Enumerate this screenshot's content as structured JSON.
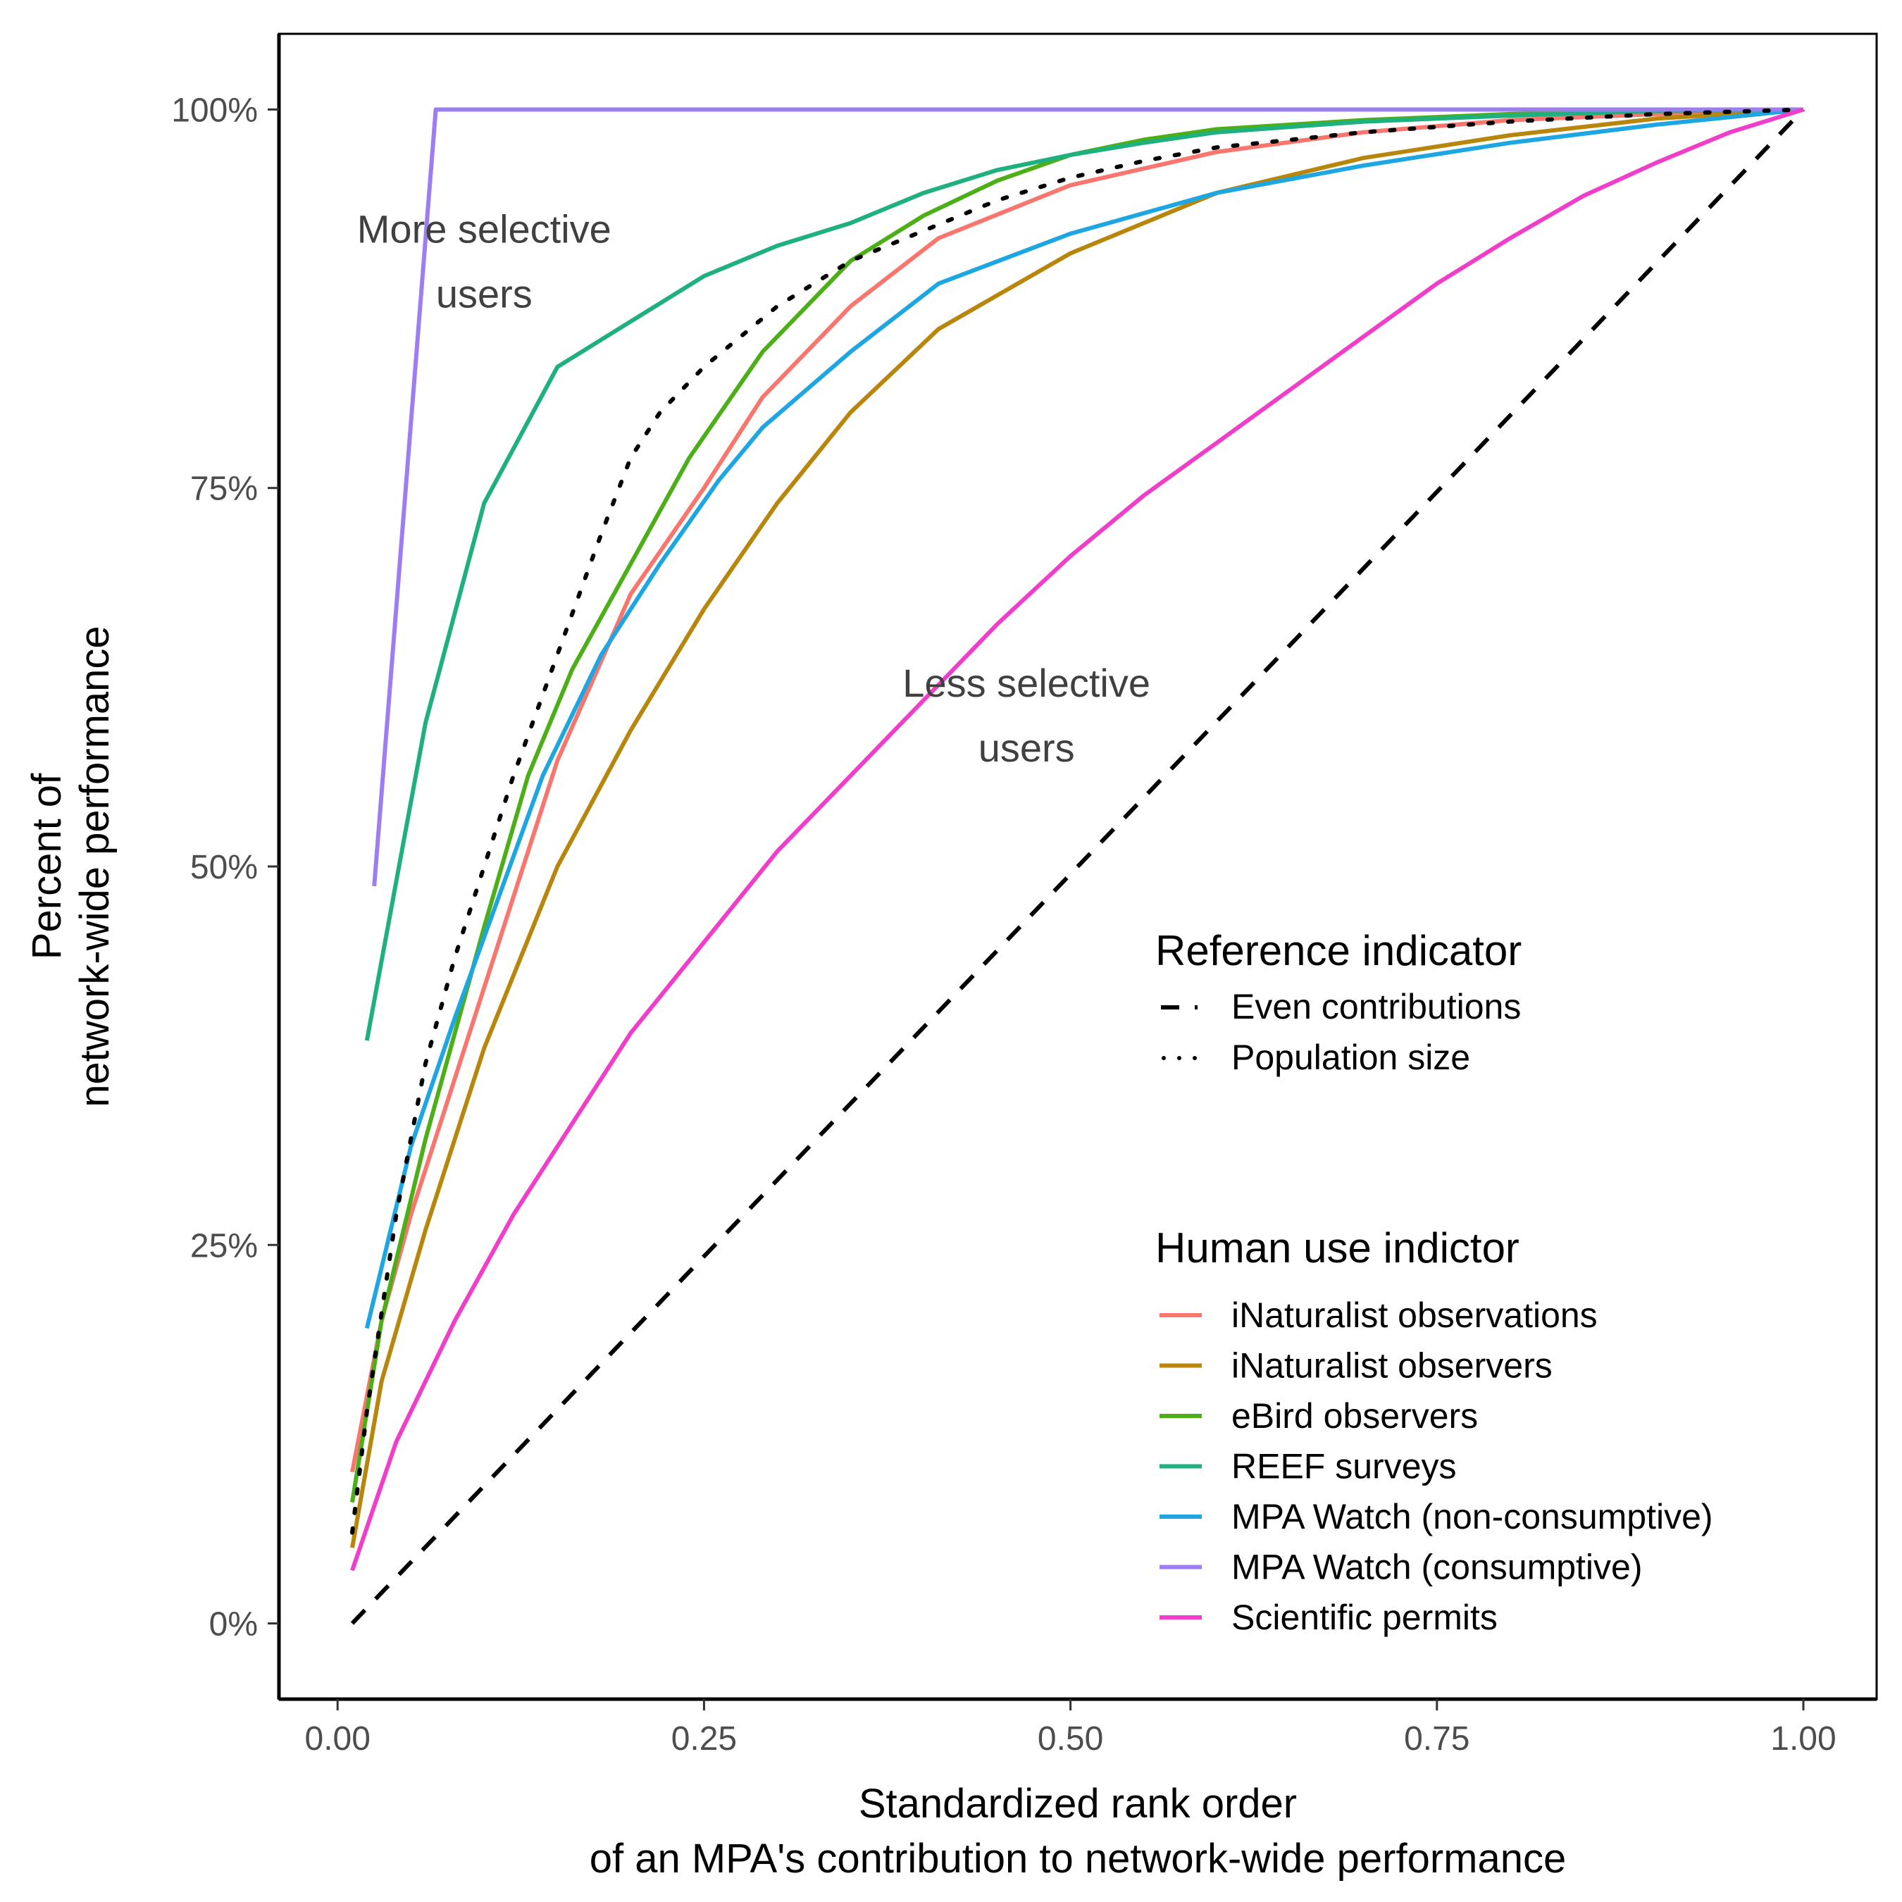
{
  "chart_data": {
    "type": "line",
    "xlabel_lines": [
      "Standardized rank order",
      "of an MPA's contribution to network-wide performance"
    ],
    "ylabel_lines": [
      "Percent of",
      "network-wide performance"
    ],
    "xlim": [
      -0.04,
      1.05
    ],
    "ylim": [
      -0.05,
      1.05
    ],
    "x_ticks": [
      0,
      0.25,
      0.5,
      0.75,
      1.0
    ],
    "x_tick_labels": [
      "0.00",
      "0.25",
      "0.50",
      "0.75",
      "1.00"
    ],
    "y_ticks": [
      0,
      0.25,
      0.5,
      0.75,
      1.0
    ],
    "y_tick_labels": [
      "0%",
      "25%",
      "50%",
      "75%",
      "100%"
    ],
    "grid": false,
    "annotations": [
      {
        "lines": [
          "More selective",
          "users"
        ],
        "x": 0.1,
        "y": 0.9
      },
      {
        "lines": [
          "Less selective",
          "users"
        ],
        "x": 0.47,
        "y": 0.6
      }
    ],
    "legend_position": "bottom-right",
    "reference_legend": {
      "title": "Reference indicator",
      "entries": [
        {
          "name": "Even contributions",
          "dash": "dashed"
        },
        {
          "name": "Population size",
          "dash": "dotted"
        }
      ]
    },
    "series_legend_title": "Human use indictor",
    "reference_series": [
      {
        "name": "Even contributions",
        "color": "#000000",
        "dash": "dashed",
        "x": [
          0.01,
          1.0
        ],
        "y": [
          0.0,
          1.0
        ]
      },
      {
        "name": "Population size",
        "color": "#000000",
        "dash": "dotted",
        "x": [
          0.01,
          0.02,
          0.04,
          0.06,
          0.08,
          0.1,
          0.12,
          0.15,
          0.18,
          0.2,
          0.22,
          0.25,
          0.3,
          0.35,
          0.4,
          0.45,
          0.5,
          0.55,
          0.6,
          0.7,
          0.8,
          0.9,
          1.0
        ],
        "y": [
          0.06,
          0.14,
          0.27,
          0.37,
          0.44,
          0.5,
          0.56,
          0.64,
          0.72,
          0.77,
          0.8,
          0.83,
          0.87,
          0.9,
          0.92,
          0.94,
          0.955,
          0.966,
          0.975,
          0.985,
          0.992,
          0.997,
          1.0
        ]
      }
    ],
    "series": [
      {
        "name": "iNaturalist observations",
        "color": "#F8766D",
        "x": [
          0.01,
          0.03,
          0.05,
          0.08,
          0.11,
          0.15,
          0.2,
          0.25,
          0.29,
          0.35,
          0.41,
          0.5,
          0.6,
          0.7,
          0.8,
          0.9,
          1.0
        ],
        "y": [
          0.1,
          0.2,
          0.27,
          0.36,
          0.45,
          0.57,
          0.68,
          0.75,
          0.81,
          0.87,
          0.915,
          0.95,
          0.972,
          0.985,
          0.993,
          0.997,
          1.0
        ]
      },
      {
        "name": "iNaturalist observers",
        "color": "#B8860B",
        "x": [
          0.01,
          0.03,
          0.06,
          0.1,
          0.15,
          0.2,
          0.25,
          0.3,
          0.35,
          0.41,
          0.5,
          0.6,
          0.7,
          0.8,
          0.9,
          1.0
        ],
        "y": [
          0.05,
          0.16,
          0.26,
          0.38,
          0.5,
          0.59,
          0.67,
          0.74,
          0.8,
          0.855,
          0.905,
          0.945,
          0.968,
          0.983,
          0.994,
          1.0
        ]
      },
      {
        "name": "eBird observers",
        "color": "#4DAF18",
        "x": [
          0.01,
          0.03,
          0.06,
          0.1,
          0.13,
          0.16,
          0.2,
          0.24,
          0.29,
          0.35,
          0.4,
          0.45,
          0.5,
          0.55,
          0.6,
          0.7,
          0.8,
          0.9,
          1.0
        ],
        "y": [
          0.08,
          0.2,
          0.32,
          0.46,
          0.56,
          0.63,
          0.7,
          0.77,
          0.84,
          0.9,
          0.93,
          0.953,
          0.97,
          0.98,
          0.987,
          0.993,
          0.997,
          0.999,
          1.0
        ]
      },
      {
        "name": "REEF surveys",
        "color": "#1FB07F",
        "x": [
          0.02,
          0.06,
          0.1,
          0.15,
          0.2,
          0.25,
          0.3,
          0.35,
          0.4,
          0.45,
          0.5,
          0.55,
          0.6,
          0.7,
          0.8,
          0.9,
          1.0
        ],
        "y": [
          0.385,
          0.595,
          0.74,
          0.83,
          0.86,
          0.89,
          0.91,
          0.925,
          0.945,
          0.96,
          0.97,
          0.978,
          0.985,
          0.992,
          0.996,
          0.999,
          1.0
        ]
      },
      {
        "name": "MPA Watch (non-consumptive)",
        "color": "#1DA6E1",
        "x": [
          0.02,
          0.05,
          0.08,
          0.11,
          0.14,
          0.18,
          0.22,
          0.26,
          0.29,
          0.35,
          0.41,
          0.5,
          0.6,
          0.7,
          0.8,
          0.9,
          1.0
        ],
        "y": [
          0.195,
          0.315,
          0.4,
          0.48,
          0.56,
          0.64,
          0.7,
          0.755,
          0.79,
          0.84,
          0.885,
          0.918,
          0.945,
          0.963,
          0.978,
          0.99,
          1.0
        ]
      },
      {
        "name": "MPA Watch (consumptive)",
        "color": "#9C7DF2",
        "x": [
          0.025,
          0.067,
          0.1,
          0.5,
          1.0
        ],
        "y": [
          0.487,
          1.0,
          1.0,
          1.0,
          1.0
        ]
      },
      {
        "name": "Scientific permits",
        "color": "#F03ECB",
        "x": [
          0.01,
          0.04,
          0.08,
          0.12,
          0.16,
          0.2,
          0.25,
          0.3,
          0.35,
          0.4,
          0.45,
          0.5,
          0.55,
          0.6,
          0.65,
          0.7,
          0.75,
          0.8,
          0.85,
          0.9,
          0.95,
          1.0
        ],
        "y": [
          0.035,
          0.12,
          0.2,
          0.27,
          0.33,
          0.39,
          0.45,
          0.51,
          0.56,
          0.61,
          0.66,
          0.705,
          0.745,
          0.78,
          0.815,
          0.85,
          0.885,
          0.915,
          0.943,
          0.965,
          0.985,
          1.0
        ]
      }
    ]
  }
}
